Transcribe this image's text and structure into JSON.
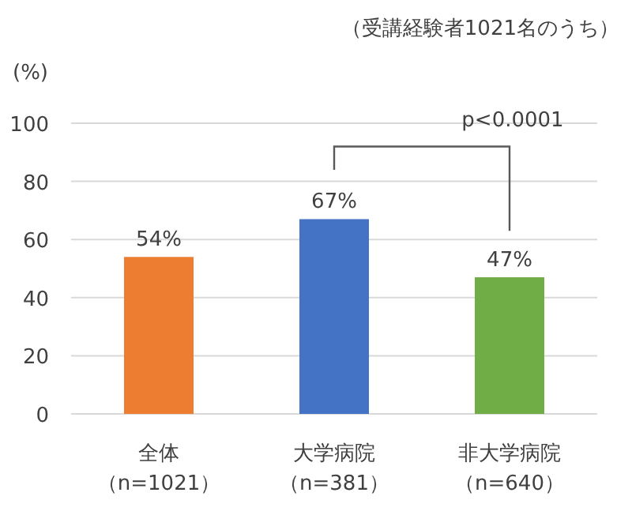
{
  "chart_data": {
    "type": "bar",
    "title": "（受講経験者1021名のうち）",
    "ylabel": "(%)",
    "categories": [
      "全体（n=1021）",
      "大学病院（n=381）",
      "非大学病院（n=640）"
    ],
    "values": [
      54,
      67,
      47
    ],
    "colors": [
      "#ed7d31",
      "#4472c4",
      "#70ad47"
    ],
    "value_labels": [
      "54%",
      "67%",
      "47%"
    ],
    "ylim": [
      0,
      100
    ],
    "yticks": [
      0,
      20,
      40,
      60,
      80,
      100
    ],
    "grid": "y",
    "annotations": [
      "p<0.0001"
    ]
  }
}
